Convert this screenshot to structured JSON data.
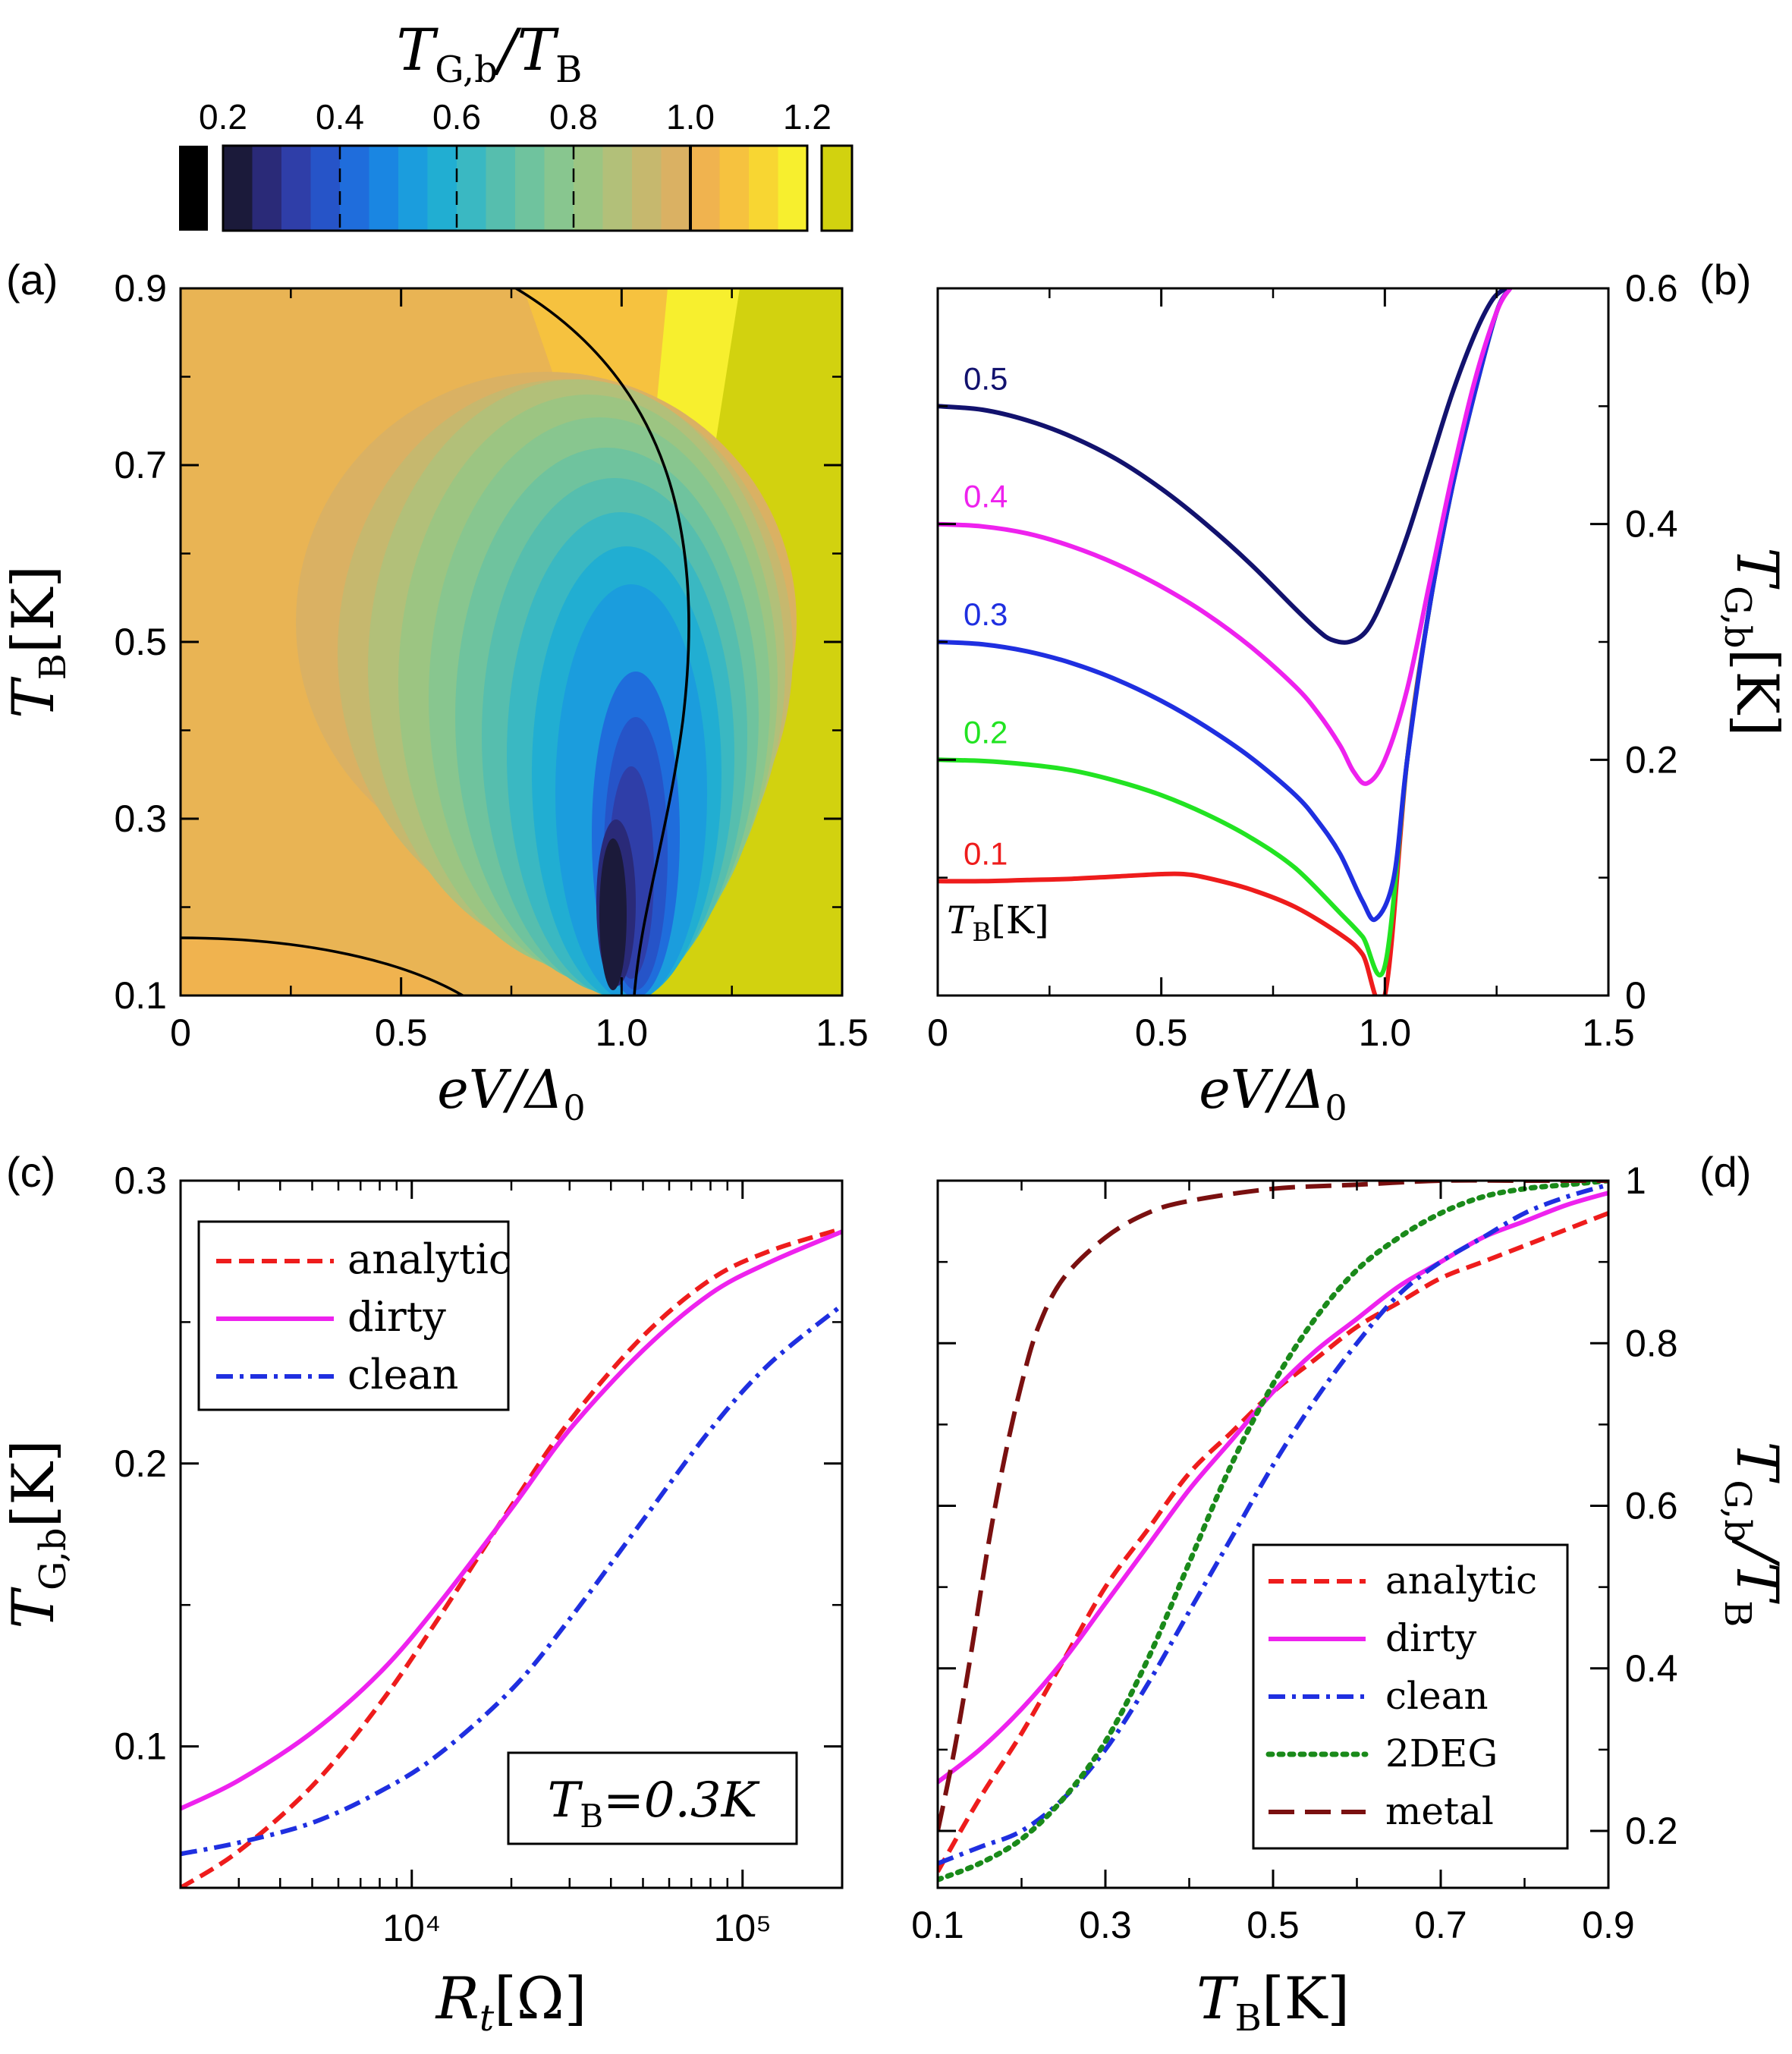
{
  "colorbar": {
    "title": "T_G,b / T_B",
    "title_main": "T",
    "title_sub": "G,b",
    "title_sep": "/T",
    "title_sub2": "B",
    "ticks": [
      "0.2",
      "0.4",
      "0.6",
      "0.8",
      "1.0",
      "1.2"
    ],
    "levels": [
      0.2,
      0.25,
      0.3,
      0.35,
      0.4,
      0.45,
      0.5,
      0.55,
      0.6,
      0.65,
      0.7,
      0.75,
      0.8,
      0.85,
      0.9,
      0.95,
      1.0,
      1.05,
      1.1,
      1.15,
      1.2
    ],
    "colors": [
      "#1b1a3a",
      "#2a2a78",
      "#2f3ea8",
      "#2654c8",
      "#1f6ddc",
      "#1a86e2",
      "#1b9ddd",
      "#21aed2",
      "#3ab8c2",
      "#56beae",
      "#6fc39e",
      "#88c68f",
      "#9cc582",
      "#b2c079",
      "#c6b86e",
      "#dab163",
      "#f0b34f",
      "#f6c23f",
      "#f8d632",
      "#f7ef2e"
    ],
    "under_color": "#000000",
    "over_color": "#d2d20f"
  },
  "chart_data": [
    {
      "panel": "(a)",
      "type": "heatmap",
      "title": "",
      "xlabel": "eV/Δ0",
      "ylabel": "T_B[K]",
      "xlim": [
        0,
        1.5
      ],
      "ylim": [
        0.1,
        0.9
      ],
      "x_ticks": [
        "0",
        "0.5",
        "1.0",
        "1.5"
      ],
      "y_ticks": [
        "0.1",
        "0.3",
        "0.5",
        "0.7",
        "0.9"
      ],
      "value": "T_G,b/T_B",
      "contour_lines": [
        1.0
      ],
      "minimum": {
        "x": 0.97,
        "y": 0.2,
        "value": 0.2
      }
    },
    {
      "panel": "(b)",
      "type": "line",
      "title": "",
      "xlabel": "eV/Δ0",
      "ylabel": "T_G,b[K]",
      "xlim": [
        0,
        1.5
      ],
      "ylim": [
        0,
        0.6
      ],
      "x_ticks": [
        "0",
        "0.5",
        "1.0",
        "1.5"
      ],
      "y_ticks": [
        "0",
        "0.2",
        "0.4",
        "0.6"
      ],
      "legend_title": "T_B[K]",
      "series": [
        {
          "name": "0.1",
          "color": "#ee1c1c",
          "x": [
            0,
            0.1,
            0.2,
            0.3,
            0.4,
            0.5,
            0.55,
            0.6,
            0.7,
            0.8,
            0.9,
            0.95,
            1.0,
            1.05,
            1.1,
            1.15,
            1.2,
            1.25,
            1.28
          ],
          "y": [
            0.097,
            0.097,
            0.098,
            0.099,
            0.101,
            0.103,
            0.103,
            0.1,
            0.09,
            0.075,
            0.052,
            0.035,
            0.0,
            0.2,
            0.33,
            0.43,
            0.51,
            0.58,
            0.6
          ]
        },
        {
          "name": "0.2",
          "color": "#22e322",
          "x": [
            0,
            0.1,
            0.2,
            0.3,
            0.4,
            0.5,
            0.6,
            0.7,
            0.8,
            0.9,
            0.95,
            1.0,
            1.05,
            1.1,
            1.15,
            1.2,
            1.25,
            1.28
          ],
          "y": [
            0.2,
            0.199,
            0.196,
            0.191,
            0.182,
            0.17,
            0.154,
            0.134,
            0.108,
            0.07,
            0.05,
            0.025,
            0.2,
            0.33,
            0.43,
            0.51,
            0.58,
            0.6
          ]
        },
        {
          "name": "0.3",
          "color": "#1f2fe0",
          "x": [
            0,
            0.1,
            0.2,
            0.3,
            0.4,
            0.5,
            0.6,
            0.7,
            0.8,
            0.85,
            0.9,
            0.95,
            0.98,
            1.02,
            1.05,
            1.1,
            1.15,
            1.2,
            1.25,
            1.28
          ],
          "y": [
            0.3,
            0.298,
            0.292,
            0.282,
            0.268,
            0.25,
            0.228,
            0.202,
            0.17,
            0.148,
            0.12,
            0.08,
            0.065,
            0.1,
            0.2,
            0.33,
            0.43,
            0.51,
            0.58,
            0.6
          ]
        },
        {
          "name": "0.4",
          "color": "#ee22ee",
          "x": [
            0,
            0.1,
            0.2,
            0.3,
            0.4,
            0.5,
            0.6,
            0.7,
            0.8,
            0.85,
            0.9,
            0.93,
            0.96,
            1.0,
            1.05,
            1.1,
            1.15,
            1.2,
            1.25,
            1.28
          ],
          "y": [
            0.4,
            0.398,
            0.392,
            0.381,
            0.366,
            0.347,
            0.324,
            0.296,
            0.262,
            0.24,
            0.212,
            0.19,
            0.18,
            0.2,
            0.26,
            0.35,
            0.44,
            0.52,
            0.58,
            0.6
          ]
        },
        {
          "name": "0.5",
          "color": "#12126e",
          "x": [
            0,
            0.1,
            0.2,
            0.3,
            0.4,
            0.5,
            0.6,
            0.7,
            0.8,
            0.85,
            0.88,
            0.92,
            0.96,
            1.0,
            1.05,
            1.1,
            1.15,
            1.2,
            1.24,
            1.27
          ],
          "y": [
            0.5,
            0.497,
            0.488,
            0.474,
            0.455,
            0.43,
            0.4,
            0.366,
            0.328,
            0.31,
            0.302,
            0.3,
            0.31,
            0.34,
            0.39,
            0.45,
            0.51,
            0.56,
            0.59,
            0.6
          ]
        }
      ]
    },
    {
      "panel": "(c)",
      "type": "line",
      "title": "",
      "xlabel": "R_t[Ω]",
      "ylabel": "T_G,b[K]",
      "xscale": "log",
      "xlim": [
        2000,
        200000
      ],
      "ylim": [
        0.05,
        0.3
      ],
      "x_ticks": [
        "10⁴",
        "10⁵"
      ],
      "y_ticks": [
        "0.1",
        "0.2",
        "0.3"
      ],
      "annotation": "T_B=0.3K",
      "series": [
        {
          "name": "analytic",
          "color": "#ee1c1c",
          "style": "dashed",
          "x": [
            2000,
            3000,
            5000,
            8000,
            12000,
            20000,
            30000,
            50000,
            80000,
            120000,
            200000
          ],
          "y": [
            0.05,
            0.063,
            0.086,
            0.115,
            0.145,
            0.185,
            0.215,
            0.245,
            0.265,
            0.275,
            0.283
          ]
        },
        {
          "name": "dirty",
          "color": "#ee22ee",
          "style": "solid",
          "x": [
            2000,
            3000,
            5000,
            8000,
            12000,
            20000,
            30000,
            50000,
            80000,
            120000,
            200000
          ],
          "y": [
            0.078,
            0.088,
            0.105,
            0.126,
            0.15,
            0.184,
            0.212,
            0.24,
            0.26,
            0.271,
            0.282
          ]
        },
        {
          "name": "clean",
          "color": "#1f2fe0",
          "style": "dashdot",
          "x": [
            2000,
            3000,
            5000,
            8000,
            12000,
            20000,
            30000,
            50000,
            80000,
            120000,
            200000
          ],
          "y": [
            0.062,
            0.066,
            0.073,
            0.084,
            0.097,
            0.12,
            0.145,
            0.18,
            0.212,
            0.235,
            0.256
          ]
        }
      ]
    },
    {
      "panel": "(d)",
      "type": "line",
      "title": "",
      "xlabel": "T_B[K]",
      "ylabel": "T_G,b/T_B",
      "xlim": [
        0.1,
        0.9
      ],
      "ylim": [
        0.13,
        1.0
      ],
      "x_ticks": [
        "0.1",
        "0.3",
        "0.5",
        "0.7",
        "0.9"
      ],
      "y_ticks": [
        "0.2",
        "0.4",
        "0.6",
        "0.8",
        "1"
      ],
      "series": [
        {
          "name": "analytic",
          "color": "#ee1c1c",
          "style": "dashed",
          "x": [
            0.1,
            0.15,
            0.2,
            0.25,
            0.3,
            0.35,
            0.4,
            0.45,
            0.5,
            0.55,
            0.6,
            0.65,
            0.7,
            0.75,
            0.8,
            0.85,
            0.9
          ],
          "y": [
            0.15,
            0.24,
            0.32,
            0.41,
            0.5,
            0.57,
            0.64,
            0.69,
            0.74,
            0.78,
            0.82,
            0.85,
            0.88,
            0.9,
            0.92,
            0.94,
            0.96
          ]
        },
        {
          "name": "dirty",
          "color": "#ee22ee",
          "style": "solid",
          "x": [
            0.1,
            0.15,
            0.2,
            0.25,
            0.3,
            0.35,
            0.4,
            0.45,
            0.5,
            0.55,
            0.6,
            0.65,
            0.7,
            0.75,
            0.8,
            0.85,
            0.9
          ],
          "y": [
            0.26,
            0.3,
            0.35,
            0.41,
            0.48,
            0.55,
            0.62,
            0.68,
            0.74,
            0.79,
            0.83,
            0.87,
            0.9,
            0.93,
            0.95,
            0.97,
            0.985
          ]
        },
        {
          "name": "clean",
          "color": "#1f2fe0",
          "style": "dashdot",
          "x": [
            0.1,
            0.15,
            0.2,
            0.25,
            0.3,
            0.35,
            0.4,
            0.45,
            0.5,
            0.55,
            0.6,
            0.65,
            0.7,
            0.75,
            0.8,
            0.85,
            0.9
          ],
          "y": [
            0.16,
            0.18,
            0.2,
            0.24,
            0.3,
            0.38,
            0.47,
            0.56,
            0.65,
            0.73,
            0.8,
            0.86,
            0.9,
            0.93,
            0.96,
            0.98,
            0.995
          ]
        },
        {
          "name": "2DEG",
          "color": "#1a8a1a",
          "style": "dotted",
          "x": [
            0.1,
            0.15,
            0.2,
            0.25,
            0.3,
            0.35,
            0.4,
            0.45,
            0.5,
            0.55,
            0.6,
            0.65,
            0.7,
            0.75,
            0.8,
            0.85,
            0.9
          ],
          "y": [
            0.14,
            0.16,
            0.19,
            0.24,
            0.31,
            0.41,
            0.53,
            0.65,
            0.75,
            0.83,
            0.89,
            0.93,
            0.96,
            0.98,
            0.99,
            0.995,
            1.0
          ]
        },
        {
          "name": "metal",
          "color": "#7a1010",
          "style": "longdash",
          "x": [
            0.1,
            0.12,
            0.14,
            0.16,
            0.18,
            0.2,
            0.22,
            0.25,
            0.3,
            0.35,
            0.4,
            0.5,
            0.6,
            0.7,
            0.8,
            0.9
          ],
          "y": [
            0.2,
            0.3,
            0.42,
            0.55,
            0.66,
            0.75,
            0.82,
            0.88,
            0.93,
            0.96,
            0.975,
            0.99,
            0.995,
            1.0,
            1.0,
            1.0
          ]
        }
      ]
    }
  ],
  "labels": {
    "panel_a": "(a)",
    "panel_b": "(b)",
    "panel_c": "(c)",
    "panel_d": "(d)",
    "x_ev": "eV/Δ",
    "x_ev_sub": "0",
    "tb_main": "T",
    "tb_sub": "B",
    "tb_unit": "[K]",
    "tg_main": "T",
    "tg_sub": "G,b",
    "tg_unit": "[K]",
    "tg_ratio": "/T",
    "rt_main": "R",
    "rt_sub": "t",
    "rt_unit": "[Ω]",
    "annot_c_main": "T",
    "annot_c_sub": "B",
    "annot_c_val": "=0.3K",
    "legend_b_title_main": "T",
    "legend_b_title_sub": "B",
    "legend_b_title_unit": "[K]"
  }
}
